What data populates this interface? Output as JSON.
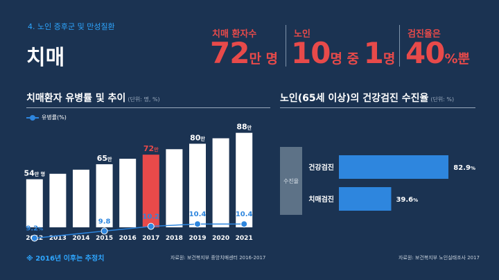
{
  "header": {
    "section_label": "4. 노인 증후군 및 만성질환",
    "title": "치매"
  },
  "stats": [
    {
      "label": "치매 환자수",
      "value_main": "72",
      "value_unit": "만 명"
    },
    {
      "label": "노인",
      "value_main": "10",
      "value_mid": "명 중 ",
      "value_main2": "1",
      "value_unit": "명"
    },
    {
      "label": "검진율은",
      "value_main": "40",
      "value_unit": "%뿐"
    }
  ],
  "left_chart": {
    "title": "치매환자 유병률 및 추이",
    "unit": "(단위: 명, %)",
    "legend": "유병률(%)",
    "footnote": "※  2016년 이후는 추정치",
    "source": "자료원:  보건복지부 중앙치매센터 2016-2017"
  },
  "right_chart": {
    "title": "노인(65세 이상)의 건강검진 수진율",
    "unit": "(단위: %)",
    "source": "자료원:  보건복지부 노인실태조사 2017"
  },
  "chart_data": [
    {
      "type": "bar",
      "categories": [
        "2012",
        "2013",
        "2014",
        "2015",
        "2016",
        "2017",
        "2018",
        "2019",
        "2020",
        "2021"
      ],
      "series": [
        {
          "values": [
            54,
            58,
            61,
            65,
            69,
            72,
            76,
            80,
            84,
            88
          ]
        },
        {
          "name": "유병률(%)",
          "type": "line",
          "points": [
            {
              "x": "2012",
              "y": 9.2
            },
            {
              "x": "2015",
              "y": 9.8
            },
            {
              "x": "2017",
              "y": 10.2
            },
            {
              "x": "2019",
              "y": 10.4
            },
            {
              "x": "2021",
              "y": 10.4
            }
          ]
        }
      ],
      "bar_labels": [
        {
          "category": "2012",
          "num": "54",
          "suffix": "만 명"
        },
        {
          "category": "2015",
          "num": "65",
          "suffix": "만"
        },
        {
          "category": "2017",
          "num": "72",
          "suffix": "만"
        },
        {
          "category": "2019",
          "num": "80",
          "suffix": "만"
        },
        {
          "category": "2021",
          "num": "88",
          "suffix": "만"
        }
      ],
      "line_labels": [
        {
          "category": "2012",
          "num": "9.2",
          "suffix": "%"
        },
        {
          "category": "2015",
          "num": "9.8",
          "suffix": ""
        },
        {
          "category": "2017",
          "num": "10.2",
          "suffix": ""
        },
        {
          "category": "2019",
          "num": "10.4",
          "suffix": ""
        },
        {
          "category": "2021",
          "num": "10.4",
          "suffix": ""
        }
      ],
      "highlight_category": "2017",
      "bar_color": "#ffffff",
      "highlight_color": "#e84a4a",
      "line_color": "#2e86de"
    },
    {
      "type": "bar",
      "orientation": "horizontal",
      "group_label": "수진율",
      "categories": [
        "건강검진",
        "치매검진"
      ],
      "values": [
        82.9,
        39.6
      ],
      "value_labels": [
        {
          "num": "82.9",
          "suffix": "%"
        },
        {
          "num": "39.6",
          "suffix": "%"
        }
      ],
      "bar_color": "#2e86de"
    }
  ]
}
